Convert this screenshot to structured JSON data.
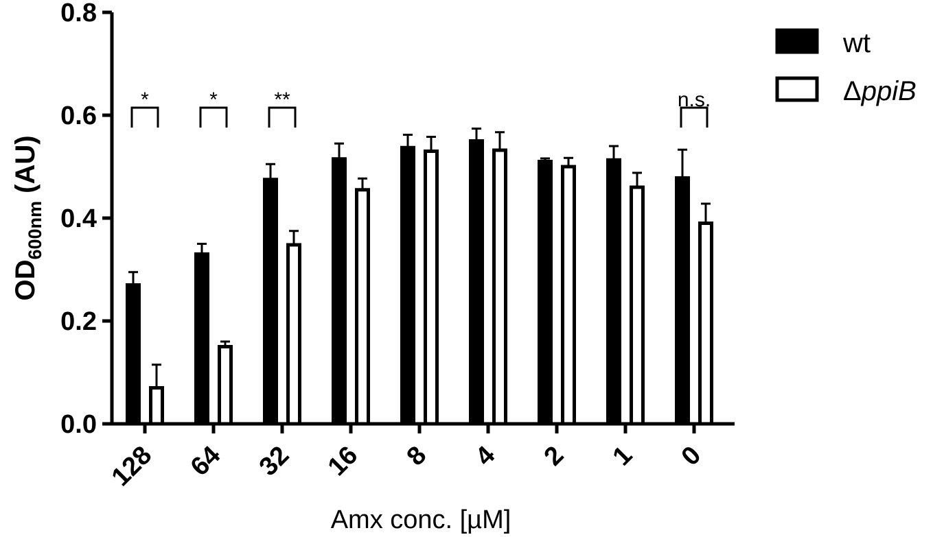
{
  "chart_data": {
    "type": "bar",
    "categories": [
      "128",
      "64",
      "32",
      "16",
      "8",
      "4",
      "2",
      "1",
      "0"
    ],
    "series": [
      {
        "name": "wt",
        "values": [
          0.27,
          0.33,
          0.475,
          0.515,
          0.537,
          0.55,
          0.51,
          0.513,
          0.478
        ],
        "errors": [
          0.025,
          0.02,
          0.03,
          0.03,
          0.025,
          0.024,
          0.006,
          0.027,
          0.055
        ],
        "fill": "#000000"
      },
      {
        "name": "ΔppiB",
        "name_prefix": "Δ",
        "name_italic": "ppiB",
        "values": [
          0.07,
          0.15,
          0.348,
          0.455,
          0.53,
          0.532,
          0.5,
          0.46,
          0.39
        ],
        "errors": [
          0.045,
          0.01,
          0.027,
          0.022,
          0.028,
          0.035,
          0.017,
          0.028,
          0.038
        ],
        "fill": "#ffffff"
      }
    ],
    "ylim": [
      0,
      0.8
    ],
    "yticks": [
      "0.0",
      "0.2",
      "0.4",
      "0.6",
      "0.8"
    ],
    "ylabel_main": "OD",
    "ylabel_sub": "600nm",
    "ylabel_tail": " (AU)",
    "xlabel": "Amx conc. [µM]",
    "legend_position": "top-right",
    "significance": [
      {
        "category": "128",
        "label": "*"
      },
      {
        "category": "64",
        "label": "*"
      },
      {
        "category": "32",
        "label": "**"
      },
      {
        "category": "0",
        "label": "n.s."
      }
    ],
    "grid": false
  }
}
